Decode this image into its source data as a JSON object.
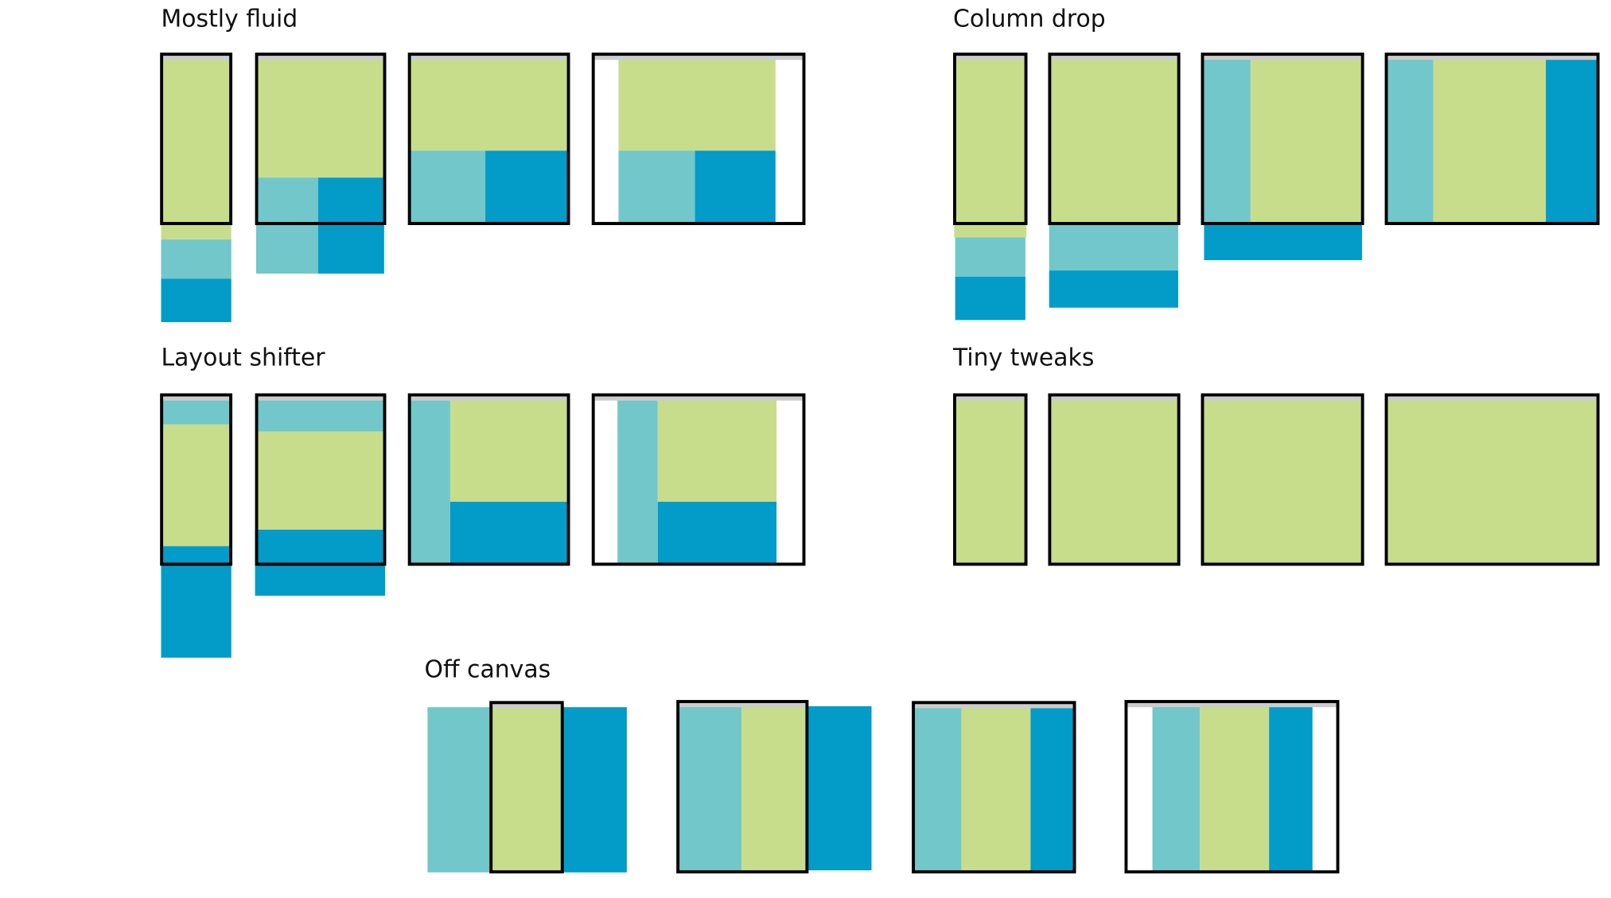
{
  "sections": [
    {
      "title": "Mostly fluid"
    },
    {
      "title": "Column drop"
    },
    {
      "title": "Layout shifter"
    },
    {
      "title": "Tiny tweaks"
    },
    {
      "title": "Off canvas"
    }
  ],
  "colors": {
    "main_content": "#c8dd8b",
    "secondary_column": "#72c7ca",
    "tertiary_column": "#039bc8",
    "browser_bar": "#cccccc",
    "frame": "#000000"
  }
}
